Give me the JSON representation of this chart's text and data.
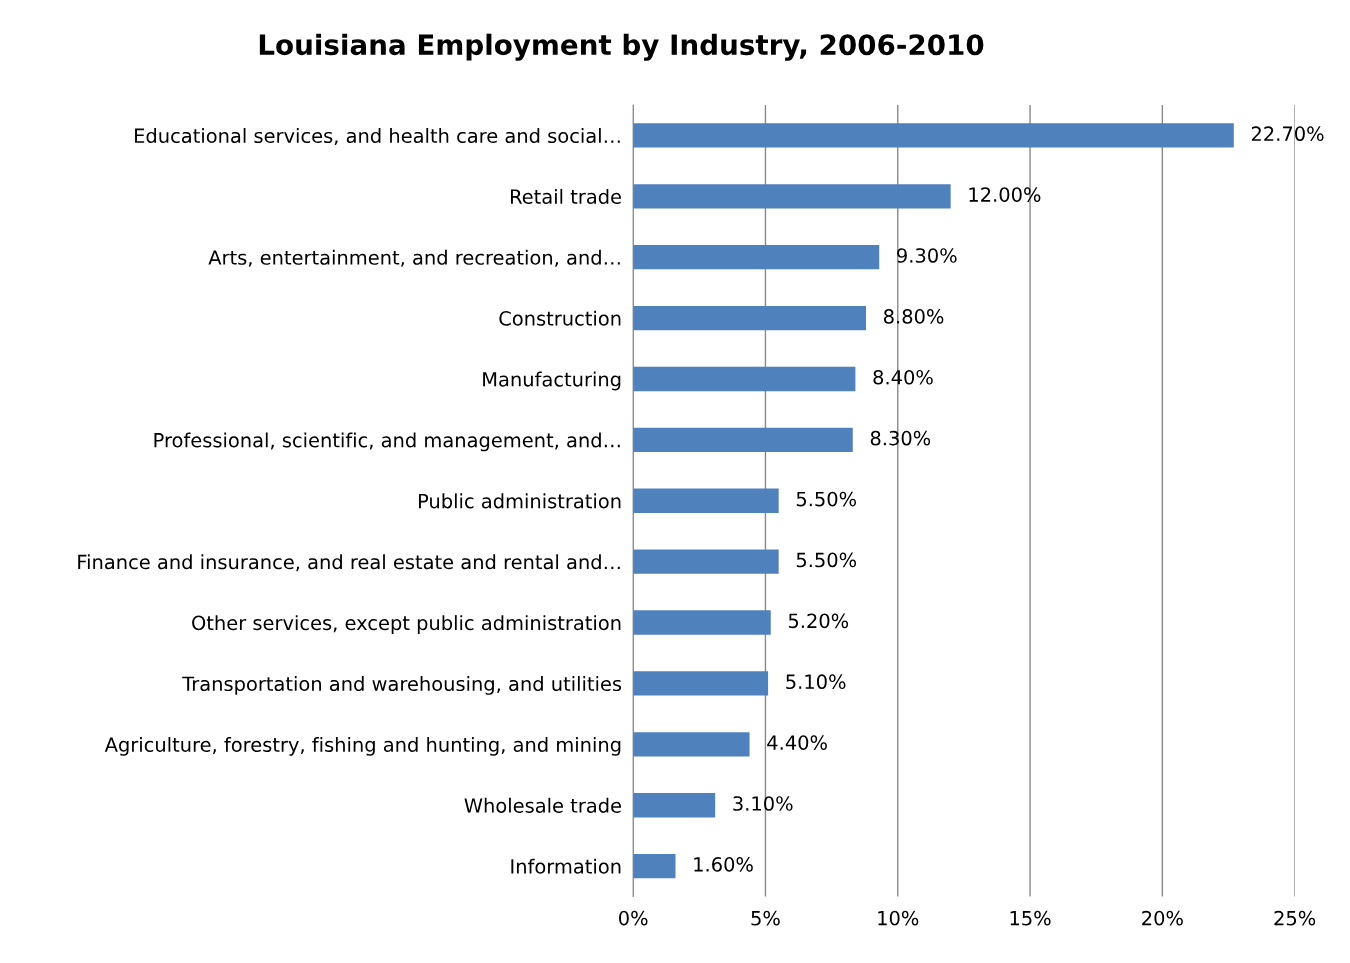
{
  "chart_data": {
    "type": "bar",
    "orientation": "horizontal",
    "title": "Louisiana Employment by Industry, 2006-2010",
    "categories": [
      "Educational services, and health care and social…",
      "Retail trade",
      "Arts, entertainment, and recreation, and…",
      "Construction",
      "Manufacturing",
      "Professional, scientific, and management, and…",
      "Public administration",
      "Finance and insurance, and real estate and rental and…",
      "Other services, except public administration",
      "Transportation and warehousing, and utilities",
      "Agriculture, forestry, fishing and hunting, and mining",
      "Wholesale trade",
      "Information"
    ],
    "values": [
      22.7,
      12.0,
      9.3,
      8.8,
      8.4,
      8.3,
      5.5,
      5.5,
      5.2,
      5.1,
      4.4,
      3.1,
      1.6
    ],
    "value_labels": [
      "22.70%",
      "12.00%",
      "9.30%",
      "8.80%",
      "8.40%",
      "8.30%",
      "5.50%",
      "5.50%",
      "5.20%",
      "5.10%",
      "4.40%",
      "3.10%",
      "1.60%"
    ],
    "color": "#4f81bd",
    "xlim": [
      0,
      25
    ],
    "xticks": [
      {
        "value": 0,
        "label": "0%"
      },
      {
        "value": 5,
        "label": "5%"
      },
      {
        "value": 10,
        "label": "10%"
      },
      {
        "value": 15,
        "label": "15%"
      },
      {
        "value": 20,
        "label": "20%"
      },
      {
        "value": 25,
        "label": "25%"
      }
    ],
    "grid": "x"
  }
}
